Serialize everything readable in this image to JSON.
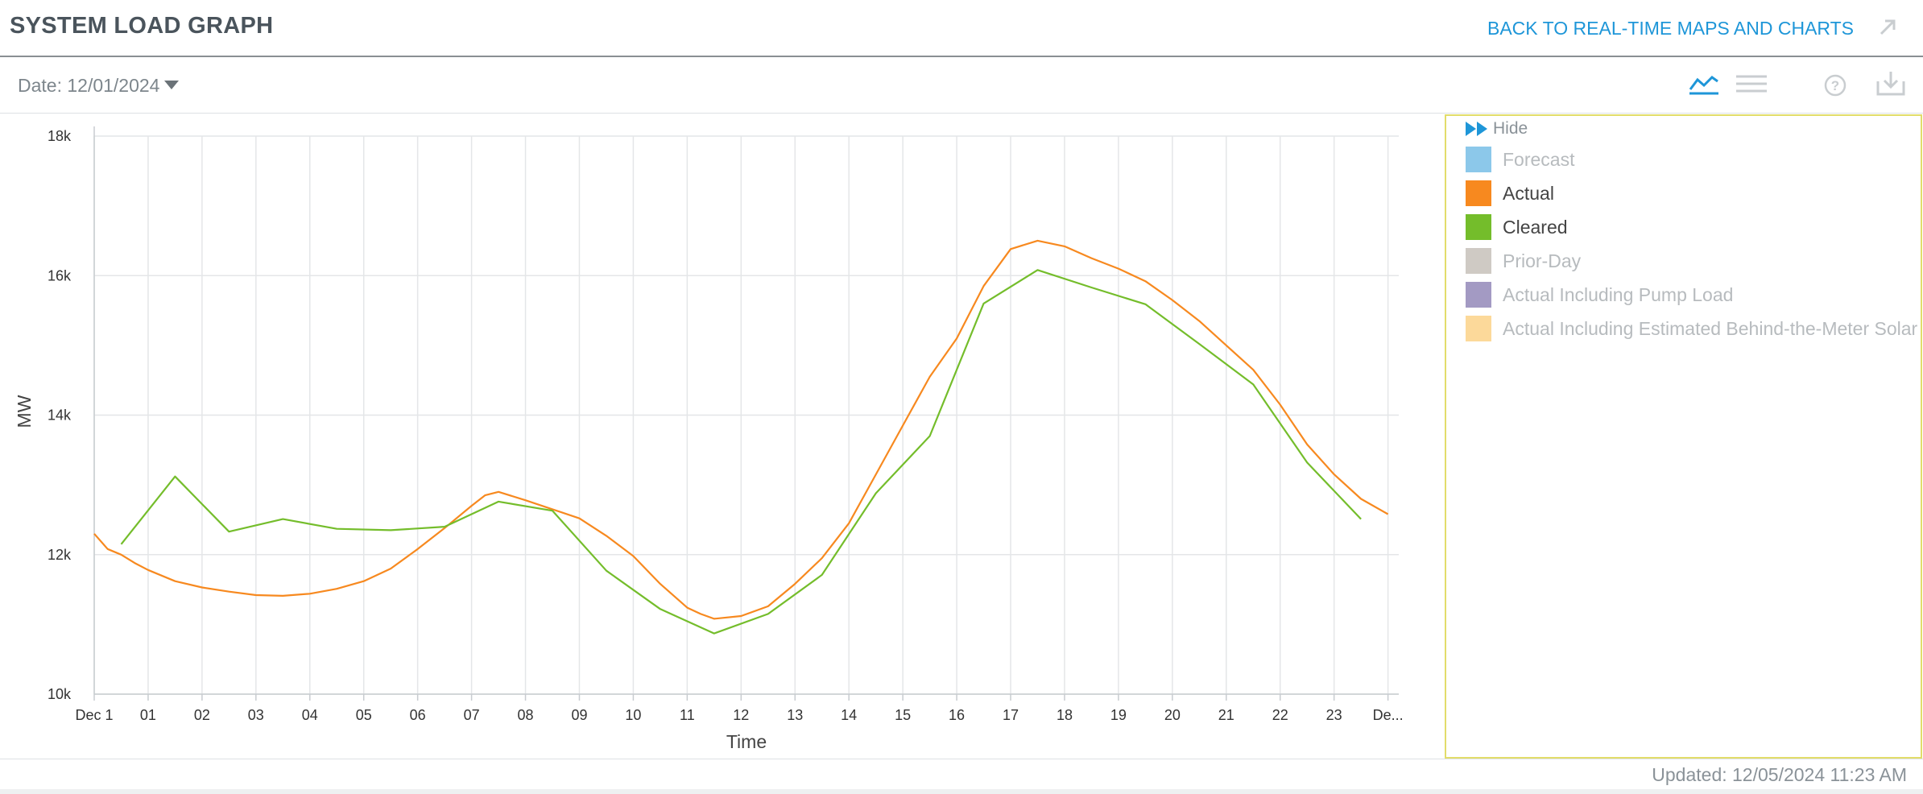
{
  "header": {
    "title": "SYSTEM LOAD GRAPH",
    "back_link": "BACK TO REAL-TIME MAPS AND CHARTS"
  },
  "toolbar": {
    "date_label": "Date: 12/01/2024"
  },
  "legend": {
    "hide_label": "Hide",
    "items": [
      {
        "label": "Forecast",
        "color": "#8cc8ea",
        "active": false
      },
      {
        "label": "Actual",
        "color": "#f7891f",
        "active": true
      },
      {
        "label": "Cleared",
        "color": "#74bd2b",
        "active": true
      },
      {
        "label": "Prior-Day",
        "color": "#cfcac4",
        "active": false
      },
      {
        "label": "Actual Including Pump Load",
        "color": "#a39ac3",
        "active": false
      },
      {
        "label": "Actual Including Estimated Behind-the-Meter Solar",
        "color": "#fcd99a",
        "active": false
      }
    ]
  },
  "footer": {
    "updated": "Updated: 12/05/2024 11:23 AM"
  },
  "chart_data": {
    "type": "line",
    "title": "",
    "xlabel": "Time",
    "ylabel": "MW",
    "xlim": [
      0,
      24.2
    ],
    "ylim": [
      10000,
      18000
    ],
    "x_ticks": [
      {
        "x": 0,
        "label": "Dec 1"
      },
      {
        "x": 1,
        "label": "01"
      },
      {
        "x": 2,
        "label": "02"
      },
      {
        "x": 3,
        "label": "03"
      },
      {
        "x": 4,
        "label": "04"
      },
      {
        "x": 5,
        "label": "05"
      },
      {
        "x": 6,
        "label": "06"
      },
      {
        "x": 7,
        "label": "07"
      },
      {
        "x": 8,
        "label": "08"
      },
      {
        "x": 9,
        "label": "09"
      },
      {
        "x": 10,
        "label": "10"
      },
      {
        "x": 11,
        "label": "11"
      },
      {
        "x": 12,
        "label": "12"
      },
      {
        "x": 13,
        "label": "13"
      },
      {
        "x": 14,
        "label": "14"
      },
      {
        "x": 15,
        "label": "15"
      },
      {
        "x": 16,
        "label": "16"
      },
      {
        "x": 17,
        "label": "17"
      },
      {
        "x": 18,
        "label": "18"
      },
      {
        "x": 19,
        "label": "19"
      },
      {
        "x": 20,
        "label": "20"
      },
      {
        "x": 21,
        "label": "21"
      },
      {
        "x": 22,
        "label": "22"
      },
      {
        "x": 23,
        "label": "23"
      },
      {
        "x": 24,
        "label": "De..."
      }
    ],
    "y_ticks": [
      {
        "y": 10000,
        "label": "10k"
      },
      {
        "y": 12000,
        "label": "12k"
      },
      {
        "y": 14000,
        "label": "14k"
      },
      {
        "y": 16000,
        "label": "16k"
      },
      {
        "y": 18000,
        "label": "18k"
      }
    ],
    "grid": true,
    "series": [
      {
        "name": "Actual",
        "color": "#f7891f",
        "points": [
          [
            0,
            12300
          ],
          [
            0.25,
            12080
          ],
          [
            0.5,
            12000
          ],
          [
            0.75,
            11880
          ],
          [
            1,
            11780
          ],
          [
            1.5,
            11620
          ],
          [
            2,
            11530
          ],
          [
            2.5,
            11470
          ],
          [
            3,
            11420
          ],
          [
            3.5,
            11410
          ],
          [
            4,
            11440
          ],
          [
            4.5,
            11510
          ],
          [
            5,
            11620
          ],
          [
            5.5,
            11800
          ],
          [
            6,
            12080
          ],
          [
            6.5,
            12380
          ],
          [
            7,
            12700
          ],
          [
            7.25,
            12850
          ],
          [
            7.5,
            12900
          ],
          [
            8,
            12780
          ],
          [
            8.5,
            12650
          ],
          [
            9,
            12520
          ],
          [
            9.5,
            12270
          ],
          [
            10,
            11980
          ],
          [
            10.5,
            11580
          ],
          [
            11,
            11240
          ],
          [
            11.25,
            11150
          ],
          [
            11.5,
            11080
          ],
          [
            12,
            11120
          ],
          [
            12.5,
            11260
          ],
          [
            13,
            11580
          ],
          [
            13.5,
            11950
          ],
          [
            14,
            12450
          ],
          [
            14.5,
            13150
          ],
          [
            15,
            13850
          ],
          [
            15.5,
            14550
          ],
          [
            16,
            15100
          ],
          [
            16.5,
            15850
          ],
          [
            17,
            16380
          ],
          [
            17.5,
            16500
          ],
          [
            18,
            16420
          ],
          [
            18.5,
            16250
          ],
          [
            19,
            16100
          ],
          [
            19.5,
            15920
          ],
          [
            20,
            15650
          ],
          [
            20.5,
            15350
          ],
          [
            21,
            15000
          ],
          [
            21.5,
            14650
          ],
          [
            22,
            14150
          ],
          [
            22.5,
            13580
          ],
          [
            23,
            13150
          ],
          [
            23.5,
            12800
          ],
          [
            24,
            12580
          ]
        ]
      },
      {
        "name": "Cleared",
        "color": "#74bd2b",
        "points": [
          [
            0.5,
            12150
          ],
          [
            1.5,
            13120
          ],
          [
            2.5,
            12330
          ],
          [
            3.5,
            12510
          ],
          [
            4.5,
            12370
          ],
          [
            5.5,
            12350
          ],
          [
            6.5,
            12400
          ],
          [
            7.5,
            12760
          ],
          [
            8.5,
            12630
          ],
          [
            9.5,
            11770
          ],
          [
            10.5,
            11220
          ],
          [
            11.5,
            10870
          ],
          [
            12.5,
            11150
          ],
          [
            13.5,
            11710
          ],
          [
            14.5,
            12880
          ],
          [
            15.5,
            13700
          ],
          [
            16.5,
            15600
          ],
          [
            17.5,
            16080
          ],
          [
            18.5,
            15830
          ],
          [
            19.5,
            15590
          ],
          [
            20.5,
            15020
          ],
          [
            21.5,
            14440
          ],
          [
            22.5,
            13320
          ],
          [
            23.5,
            12510
          ]
        ]
      }
    ]
  }
}
